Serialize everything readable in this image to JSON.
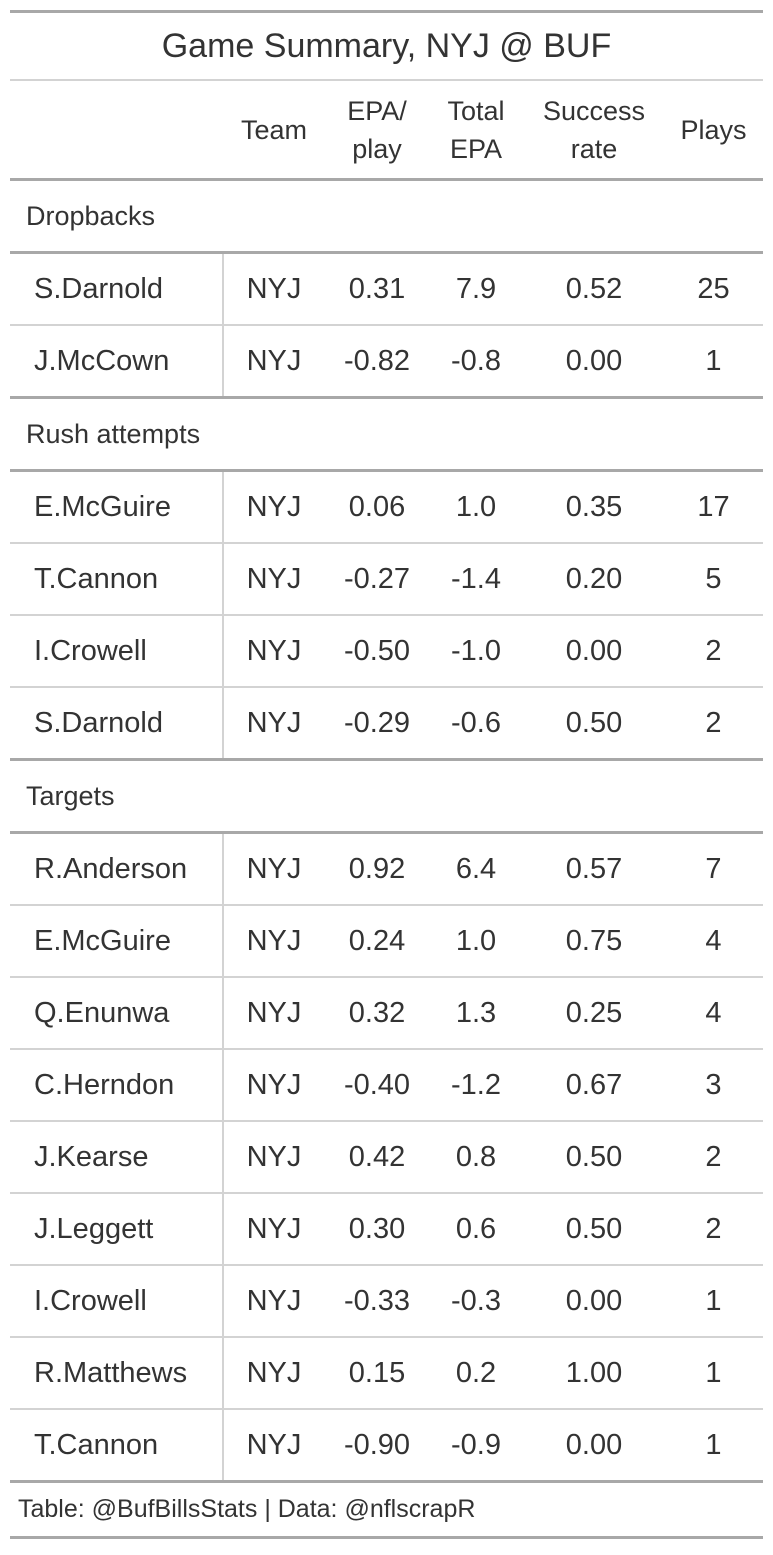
{
  "title": "Game Summary, NYJ @ BUF",
  "columns": {
    "team": "Team",
    "epa_play": [
      "EPA/",
      "play"
    ],
    "total_epa": [
      "Total",
      "EPA"
    ],
    "success_rate": [
      "Success",
      "rate"
    ],
    "plays": "Plays"
  },
  "groups": [
    {
      "label": "Dropbacks",
      "rows": [
        {
          "name": "S.Darnold",
          "team": "NYJ",
          "epa_play": "0.31",
          "total_epa": "7.9",
          "success_rate": "0.52",
          "plays": "25"
        },
        {
          "name": "J.McCown",
          "team": "NYJ",
          "epa_play": "-0.82",
          "total_epa": "-0.8",
          "success_rate": "0.00",
          "plays": "1"
        }
      ]
    },
    {
      "label": "Rush attempts",
      "rows": [
        {
          "name": "E.McGuire",
          "team": "NYJ",
          "epa_play": "0.06",
          "total_epa": "1.0",
          "success_rate": "0.35",
          "plays": "17"
        },
        {
          "name": "T.Cannon",
          "team": "NYJ",
          "epa_play": "-0.27",
          "total_epa": "-1.4",
          "success_rate": "0.20",
          "plays": "5"
        },
        {
          "name": "I.Crowell",
          "team": "NYJ",
          "epa_play": "-0.50",
          "total_epa": "-1.0",
          "success_rate": "0.00",
          "plays": "2"
        },
        {
          "name": "S.Darnold",
          "team": "NYJ",
          "epa_play": "-0.29",
          "total_epa": "-0.6",
          "success_rate": "0.50",
          "plays": "2"
        }
      ]
    },
    {
      "label": "Targets",
      "rows": [
        {
          "name": "R.Anderson",
          "team": "NYJ",
          "epa_play": "0.92",
          "total_epa": "6.4",
          "success_rate": "0.57",
          "plays": "7"
        },
        {
          "name": "E.McGuire",
          "team": "NYJ",
          "epa_play": "0.24",
          "total_epa": "1.0",
          "success_rate": "0.75",
          "plays": "4"
        },
        {
          "name": "Q.Enunwa",
          "team": "NYJ",
          "epa_play": "0.32",
          "total_epa": "1.3",
          "success_rate": "0.25",
          "plays": "4"
        },
        {
          "name": "C.Herndon",
          "team": "NYJ",
          "epa_play": "-0.40",
          "total_epa": "-1.2",
          "success_rate": "0.67",
          "plays": "3"
        },
        {
          "name": "J.Kearse",
          "team": "NYJ",
          "epa_play": "0.42",
          "total_epa": "0.8",
          "success_rate": "0.50",
          "plays": "2"
        },
        {
          "name": "J.Leggett",
          "team": "NYJ",
          "epa_play": "0.30",
          "total_epa": "0.6",
          "success_rate": "0.50",
          "plays": "2"
        },
        {
          "name": "I.Crowell",
          "team": "NYJ",
          "epa_play": "-0.33",
          "total_epa": "-0.3",
          "success_rate": "0.00",
          "plays": "1"
        },
        {
          "name": "R.Matthews",
          "team": "NYJ",
          "epa_play": "0.15",
          "total_epa": "0.2",
          "success_rate": "1.00",
          "plays": "1"
        },
        {
          "name": "T.Cannon",
          "team": "NYJ",
          "epa_play": "-0.90",
          "total_epa": "-0.9",
          "success_rate": "0.00",
          "plays": "1"
        }
      ]
    }
  ],
  "source_note": "Table: @BufBillsStats | Data: @nflscrapR"
}
